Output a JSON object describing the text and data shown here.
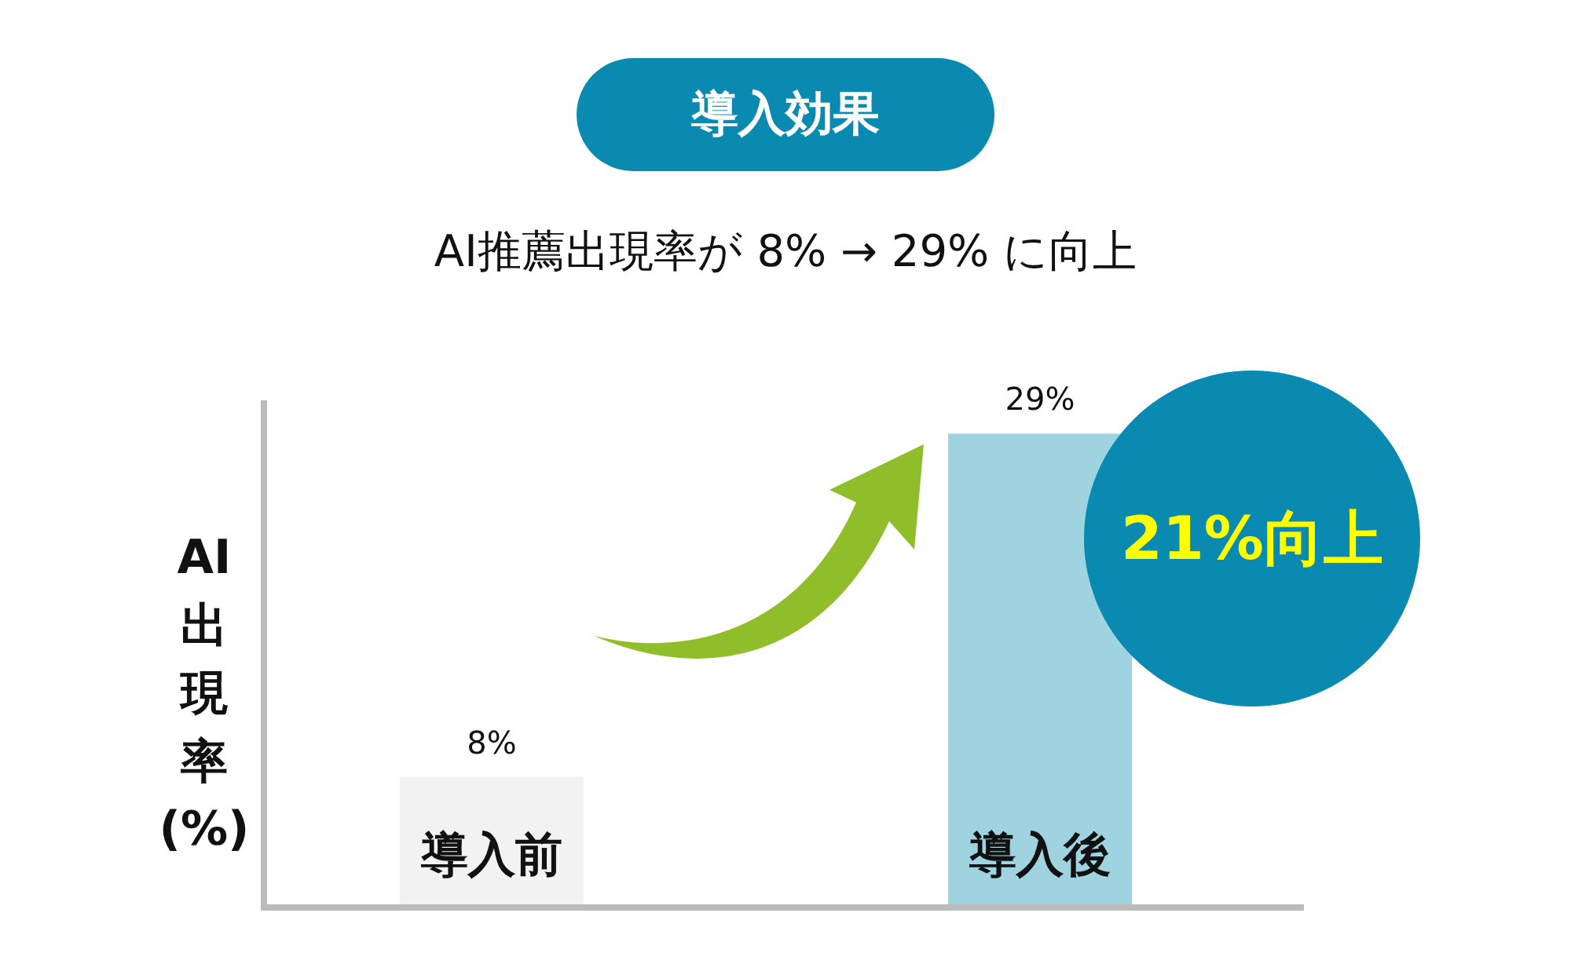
{
  "chart_data": {
    "type": "bar",
    "title": "導入効果",
    "subtitle": "AI推薦出現率が 8% → 29% に向上",
    "ylabel": "AI出現率(%)",
    "categories": [
      "導入前",
      "導入後"
    ],
    "values": [
      8,
      29
    ],
    "colors": [
      "#f2f2f2",
      "#9fd3e0"
    ],
    "value_labels": [
      "8%",
      "29%"
    ],
    "annotations": [
      "21%向上"
    ]
  }
}
